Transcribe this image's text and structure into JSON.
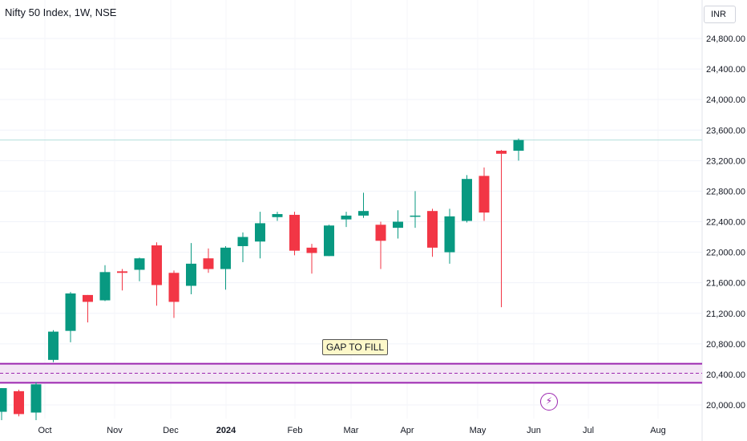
{
  "header": {
    "title": "Nifty 50 Index, 1W, NSE",
    "currency": "INR"
  },
  "annotation": {
    "text": "GAP TO FILL"
  },
  "icons": {
    "event": "lightning-bolt-icon"
  },
  "colors": {
    "up": "#089981",
    "down": "#f23645",
    "zone": "#9c27b0",
    "zone_fill": "#f3e5f5",
    "last_price_line": "#b2dfdb"
  },
  "chart_data": {
    "type": "candlestick",
    "title": "Nifty 50 Index, 1W, NSE",
    "y_ticks": [
      "20,000.00",
      "20,400.00",
      "20,800.00",
      "21,200.00",
      "21,600.00",
      "22,000.00",
      "22,400.00",
      "22,800.00",
      "23,200.00",
      "23,600.00",
      "24,000.00",
      "24,400.00",
      "24,800.00"
    ],
    "x_ticks": [
      "Oct",
      "Nov",
      "Dec",
      "2024",
      "Feb",
      "Mar",
      "Apr",
      "May",
      "Jun",
      "Jul",
      "Aug"
    ],
    "ylim": [
      19950,
      25100
    ],
    "grid": true,
    "zone": {
      "low": 20290,
      "high": 20540,
      "label": "GAP TO FILL"
    },
    "last_price": 23470,
    "candles": [
      {
        "o": 19910,
        "h": 20220,
        "l": 19800,
        "c": 20220
      },
      {
        "o": 20180,
        "h": 20200,
        "l": 19850,
        "c": 19880
      },
      {
        "o": 19900,
        "h": 20300,
        "l": 19800,
        "c": 20270
      },
      {
        "o": 20590,
        "h": 20980,
        "l": 20560,
        "c": 20960
      },
      {
        "o": 20970,
        "h": 21480,
        "l": 20820,
        "c": 21460
      },
      {
        "o": 21440,
        "h": 21440,
        "l": 21080,
        "c": 21350
      },
      {
        "o": 21370,
        "h": 21830,
        "l": 21360,
        "c": 21740
      },
      {
        "o": 21750,
        "h": 21780,
        "l": 21500,
        "c": 21730
      },
      {
        "o": 21770,
        "h": 21930,
        "l": 21620,
        "c": 21920
      },
      {
        "o": 22090,
        "h": 22130,
        "l": 21300,
        "c": 21570
      },
      {
        "o": 21730,
        "h": 21760,
        "l": 21140,
        "c": 21350
      },
      {
        "o": 21560,
        "h": 22120,
        "l": 21450,
        "c": 21850
      },
      {
        "o": 21920,
        "h": 22050,
        "l": 21730,
        "c": 21780
      },
      {
        "o": 21780,
        "h": 22080,
        "l": 21510,
        "c": 22060
      },
      {
        "o": 22080,
        "h": 22260,
        "l": 21870,
        "c": 22200
      },
      {
        "o": 22140,
        "h": 22530,
        "l": 21920,
        "c": 22380
      },
      {
        "o": 22460,
        "h": 22530,
        "l": 22410,
        "c": 22500
      },
      {
        "o": 22490,
        "h": 22530,
        "l": 21960,
        "c": 22020
      },
      {
        "o": 22060,
        "h": 22110,
        "l": 21720,
        "c": 21990
      },
      {
        "o": 21950,
        "h": 22360,
        "l": 21950,
        "c": 22350
      },
      {
        "o": 22430,
        "h": 22530,
        "l": 22330,
        "c": 22480
      },
      {
        "o": 22480,
        "h": 22780,
        "l": 22450,
        "c": 22540
      },
      {
        "o": 22360,
        "h": 22400,
        "l": 21780,
        "c": 22150
      },
      {
        "o": 22320,
        "h": 22550,
        "l": 22180,
        "c": 22400
      },
      {
        "o": 22470,
        "h": 22800,
        "l": 22320,
        "c": 22480
      },
      {
        "o": 22540,
        "h": 22570,
        "l": 21940,
        "c": 22060
      },
      {
        "o": 22000,
        "h": 22570,
        "l": 21850,
        "c": 22470
      },
      {
        "o": 22410,
        "h": 23010,
        "l": 22390,
        "c": 22960
      },
      {
        "o": 23000,
        "h": 23110,
        "l": 22410,
        "c": 22520
      },
      {
        "o": 23330,
        "h": 23340,
        "l": 21280,
        "c": 23290
      },
      {
        "o": 23330,
        "h": 23490,
        "l": 23200,
        "c": 23470
      }
    ],
    "candle_index_start": 0
  }
}
